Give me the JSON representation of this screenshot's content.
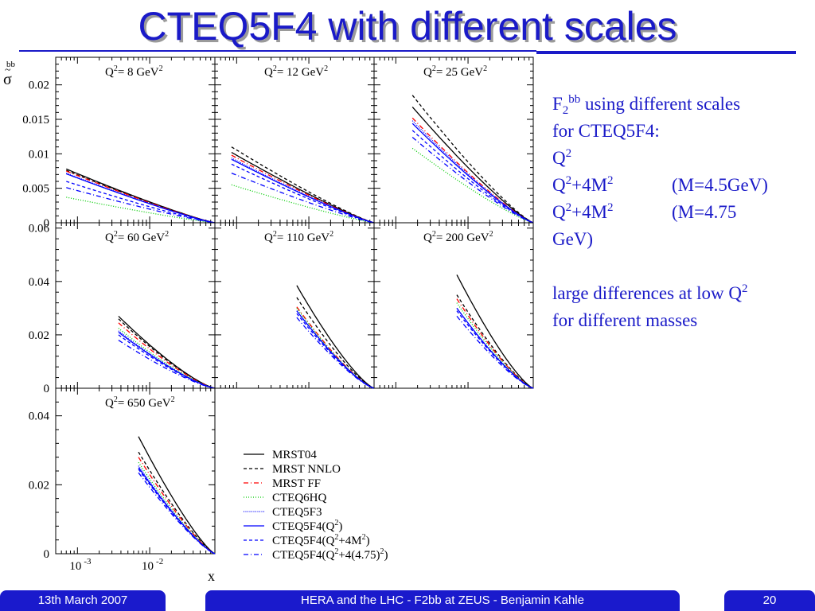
{
  "slide": {
    "title": "CTEQ5F4 with different scales",
    "footer_left": "13th March 2007",
    "footer_center": "HERA and the LHC - F2bb at ZEUS - Benjamin Kahle",
    "footer_right": "20"
  },
  "side_text": {
    "f2": "F",
    "f2_sub": "2",
    "f2_sup": "bb",
    "line1_rest": " using different scales",
    "line2": "for CTEQ5F4:",
    "q": "Q",
    "q_sup": "2",
    "row3_a": "Q",
    "row3_a_sup": "2",
    "row3_b": "+4M",
    "row3_b_sup": "2",
    "row3_note": "(M=4.5GeV)",
    "row4_a": "Q",
    "row4_a_sup": "2",
    "row4_b": "+4M",
    "row4_b_sup": "2",
    "row4_note": "(M=4.75",
    "row5": "GeV)",
    "row6": "large differences at low Q",
    "row6_sup": "2",
    "row7": "for different masses"
  },
  "chart_data": {
    "type": "line",
    "ylabel_main": "σ",
    "ylabel_tilde": "~",
    "ylabel_sup": "bb",
    "xlabel": "x",
    "xscale": "log",
    "xlim": [
      0.0005,
      0.08
    ],
    "xticks": [
      {
        "value": 0.001,
        "base": "10",
        "exp": "-3"
      },
      {
        "value": 0.01,
        "base": "10",
        "exp": "-2"
      }
    ],
    "series": [
      {
        "name": "MRST04",
        "color": "#000000",
        "dash": ""
      },
      {
        "name": "MRST NNLO",
        "color": "#000000",
        "dash": "4,3"
      },
      {
        "name": "MRST FF",
        "color": "#ff0000",
        "dash": "6,3,1,3"
      },
      {
        "name": "CTEQ6HQ",
        "color": "#00cc00",
        "dash": "1,2"
      },
      {
        "name": "CTEQ5F3",
        "color": "#0000ff",
        "dash": "1,1.5"
      },
      {
        "name": "CTEQ5F4(Q²)",
        "color": "#0000ff",
        "dash": ""
      },
      {
        "name": "CTEQ5F4(Q²+4M²)",
        "color": "#0000ff",
        "dash": "4,3"
      },
      {
        "name": "CTEQ5F4(Q²+4(4.75)²)",
        "color": "#0000ff",
        "dash": "6,3,1,3"
      }
    ],
    "legend": [
      {
        "text": "MRST04"
      },
      {
        "text": "MRST NNLO"
      },
      {
        "text": "MRST FF"
      },
      {
        "text": "CTEQ6HQ"
      },
      {
        "text": "CTEQ5F3"
      },
      {
        "text": "CTEQ5F4(Q",
        "sup": "2",
        "tail": ")"
      },
      {
        "text": "CTEQ5F4(Q",
        "sup": "2",
        "mid": "+4M",
        "sup2": "2",
        "tail": ")"
      },
      {
        "text": "CTEQ5F4(Q",
        "sup": "2",
        "mid": "+4(4.75)",
        "sup2": "2",
        "tail": ")"
      }
    ],
    "panels": [
      {
        "q2": "8",
        "unit": "GeV",
        "xmin": 0.0007,
        "xmax": 0.08,
        "ylim": [
          0,
          0.024
        ],
        "yticks": [
          {
            "v": 0,
            "l": "0"
          },
          {
            "v": 0.005,
            "l": "0.005"
          },
          {
            "v": 0.01,
            "l": "0.01"
          },
          {
            "v": 0.015,
            "l": "0.015"
          },
          {
            "v": 0.02,
            "l": "0.02"
          }
        ],
        "start": [
          0.0078,
          0.0076,
          0.0075,
          0.0037,
          0.0072,
          0.0071,
          0.006,
          0.0051
        ],
        "k": 1.15
      },
      {
        "q2": "12",
        "unit": "GeV",
        "xmin": 0.00085,
        "xmax": 0.08,
        "ylim": [
          0,
          0.024
        ],
        "yticks": [],
        "start": [
          0.0102,
          0.011,
          0.0098,
          0.0055,
          0.0094,
          0.0092,
          0.0085,
          0.0072
        ],
        "k": 1.15
      },
      {
        "q2": "25",
        "unit": "GeV",
        "xmin": 0.0017,
        "xmax": 0.08,
        "ylim": [
          0,
          0.024
        ],
        "yticks": [],
        "start": [
          0.0168,
          0.0185,
          0.0152,
          0.0108,
          0.0148,
          0.0144,
          0.0134,
          0.0124
        ],
        "k": 1.2
      },
      {
        "q2": "60",
        "unit": "GeV",
        "xmin": 0.0037,
        "xmax": 0.08,
        "ylim": [
          0,
          0.062
        ],
        "yticks": [
          {
            "v": 0,
            "l": "0"
          },
          {
            "v": 0.02,
            "l": "0.02"
          },
          {
            "v": 0.04,
            "l": "0.04"
          },
          {
            "v": 0.06,
            "l": "0.06"
          }
        ],
        "start": [
          0.027,
          0.026,
          0.0245,
          0.0225,
          0.0215,
          0.021,
          0.02,
          0.018
        ],
        "k": 1.3
      },
      {
        "q2": "110",
        "unit": "GeV",
        "xmin": 0.0068,
        "xmax": 0.08,
        "ylim": [
          0,
          0.062
        ],
        "yticks": [],
        "start": [
          0.0385,
          0.034,
          0.0305,
          0.03,
          0.029,
          0.029,
          0.028,
          0.0265
        ],
        "k": 1.3
      },
      {
        "q2": "200",
        "unit": "GeV",
        "xmin": 0.007,
        "xmax": 0.08,
        "ylim": [
          0,
          0.062
        ],
        "yticks": [],
        "start": [
          0.0425,
          0.035,
          0.0335,
          0.032,
          0.03,
          0.03,
          0.029,
          0.027
        ],
        "k": 1.3
      },
      {
        "q2": "650",
        "unit": "GeV",
        "xmin": 0.007,
        "xmax": 0.08,
        "ylim": [
          0,
          0.048
        ],
        "yticks": [
          {
            "v": 0,
            "l": "0"
          },
          {
            "v": 0.02,
            "l": "0.02"
          },
          {
            "v": 0.04,
            "l": "0.04"
          }
        ],
        "start": [
          0.034,
          0.0295,
          0.028,
          0.0265,
          0.0255,
          0.025,
          0.0245,
          0.0235
        ],
        "k": 1.25
      }
    ]
  }
}
